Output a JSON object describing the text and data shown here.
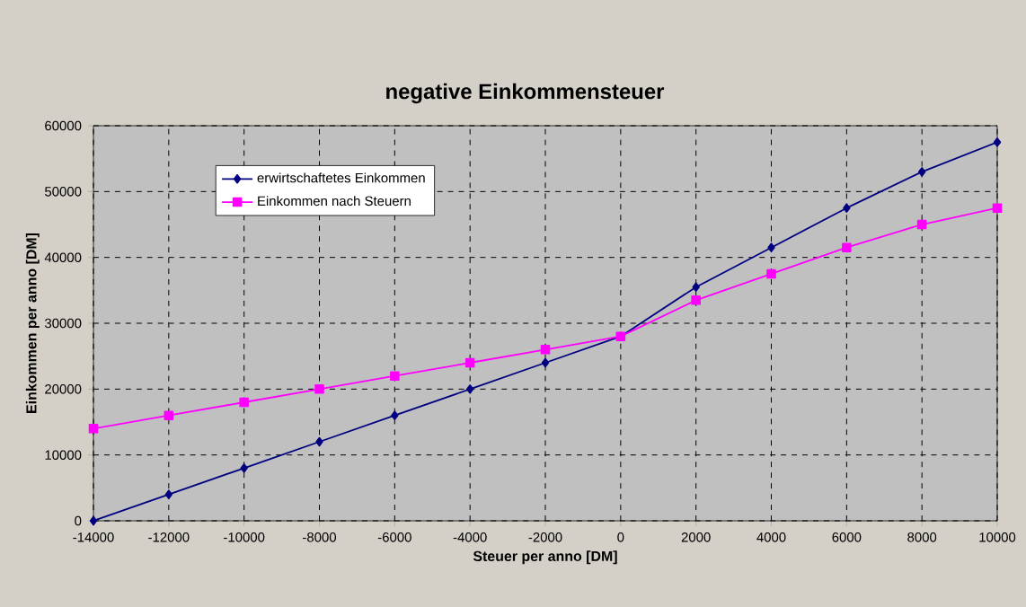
{
  "chart_data": {
    "type": "line",
    "title": "negative Einkommensteuer",
    "xlabel": "Steuer per anno  [DM]",
    "ylabel": "Einkommen per anno  [DM]",
    "x": [
      -14000,
      -12000,
      -10000,
      -8000,
      -6000,
      -4000,
      -2000,
      0,
      2000,
      4000,
      6000,
      8000,
      10000
    ],
    "series": [
      {
        "name": "erwirtschaftetes Einkommen",
        "color": "#000080",
        "marker": "diamond",
        "values": [
          0,
          4000,
          8000,
          12000,
          16000,
          20000,
          24000,
          28000,
          35500,
          41500,
          47500,
          53000,
          57500
        ]
      },
      {
        "name": "Einkommen nach Steuern",
        "color": "#ff00ff",
        "marker": "square",
        "values": [
          14000,
          16000,
          18000,
          20000,
          22000,
          24000,
          26000,
          28000,
          33500,
          37500,
          41500,
          45000,
          47500
        ]
      }
    ],
    "xlim": [
      -14000,
      10000
    ],
    "ylim": [
      0,
      60000
    ],
    "xticks": [
      -14000,
      -12000,
      -10000,
      -8000,
      -6000,
      -4000,
      -2000,
      0,
      2000,
      4000,
      6000,
      8000,
      10000
    ],
    "yticks": [
      0,
      10000,
      20000,
      30000,
      40000,
      50000,
      60000
    ],
    "grid": true,
    "line_style": "solid",
    "legend": "top left"
  }
}
